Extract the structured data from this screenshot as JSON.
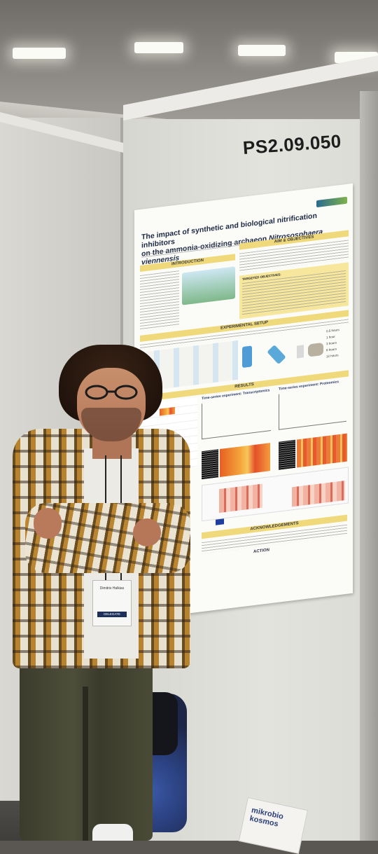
{
  "booth": {
    "number": "PS2.09.050"
  },
  "poster": {
    "title_line1": "The impact of synthetic and biological nitrification inhibitors",
    "title_line2_prefix": "on the ammonia-oxidizing archaeon",
    "title_species": "Nitrososphaera viennensis",
    "sections": {
      "introduction": "INTRODUCTION",
      "aims": "AIM & OBJECTIVES",
      "experimental_setup": "EXPERIMENTAL SETUP",
      "results": "RESULTS",
      "acknowledgements": "ACKNOWLEDGEMENTS"
    },
    "objectives_label": "TARGETED OBJECTIVES:",
    "results_headers": [
      "Time-series experiment: Transcriptomics",
      "Time-series experiment: Proteomics"
    ],
    "timepoints": [
      "0.5 hours",
      "1 hour",
      "3 hours",
      "6 hours",
      "12 hours"
    ],
    "logo_text": "ACTION"
  },
  "badge": {
    "name": "Dimitris Halkias",
    "type": "DELEGATE"
  },
  "booklet": {
    "line1": "mikrobio",
    "line2": "kosmos"
  },
  "colors": {
    "section_header": "#efd97a",
    "poster_title": "#1e2a44",
    "booth_wall": "#e3e3de"
  }
}
